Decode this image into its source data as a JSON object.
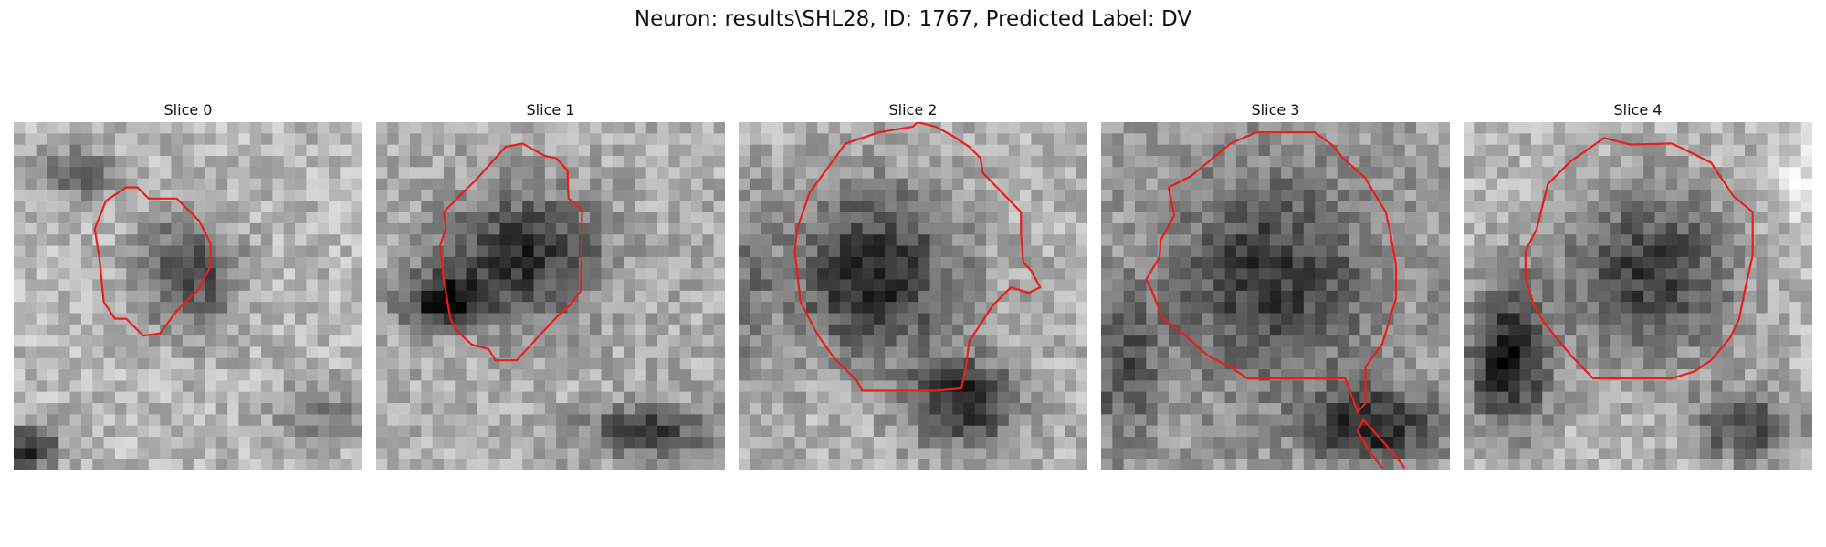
{
  "figure": {
    "title": "Neuron: results\\SHL28, ID: 1767, Predicted Label: DV"
  },
  "slices": [
    {
      "label": "Slice 0"
    },
    {
      "label": "Slice 1"
    },
    {
      "label": "Slice 2"
    },
    {
      "label": "Slice 3"
    },
    {
      "label": "Slice 4"
    }
  ],
  "colors": {
    "contour": "#e8201a"
  }
}
